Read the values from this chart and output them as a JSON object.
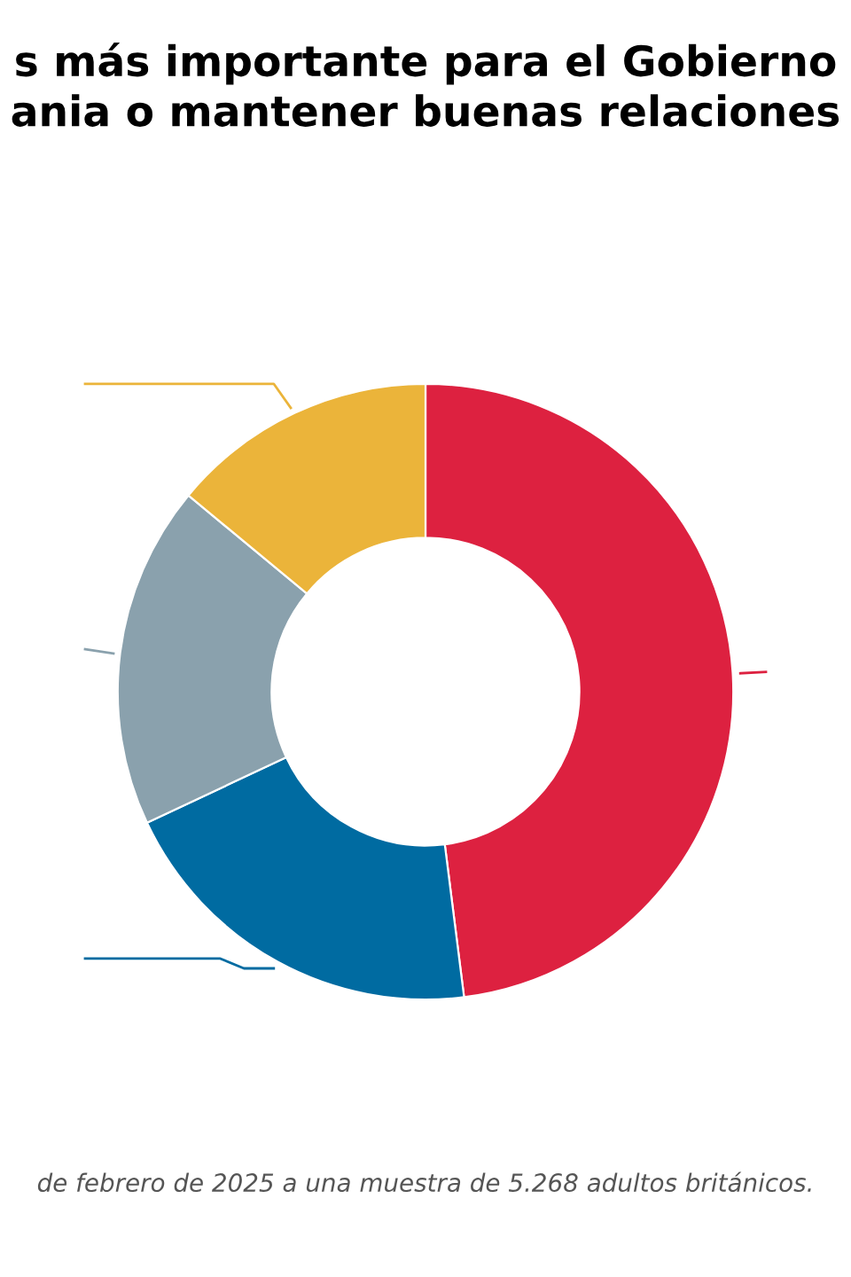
{
  "chart_data": {
    "type": "donut",
    "title": "s más importante para el Gobierno\nania o mantener buenas relaciones",
    "categories": [
      null,
      null,
      null,
      null
    ],
    "values": [
      48,
      20,
      18,
      14
    ],
    "colors": [
      "#dd2140",
      "#006ba1",
      "#8aa1ad",
      "#ebb43a"
    ],
    "annotations": [
      "de febrero de 2025 a una muestra de 5.268 adultos británicos."
    ]
  }
}
